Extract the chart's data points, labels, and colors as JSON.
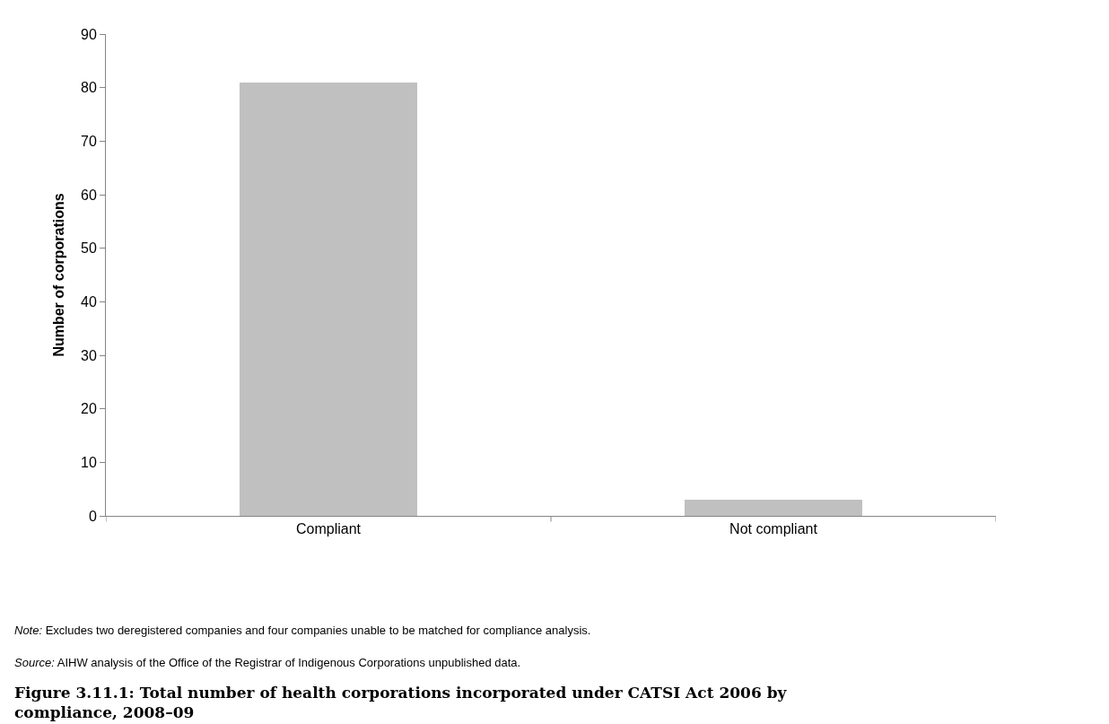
{
  "chart_data": {
    "type": "bar",
    "title": "Figure 3.11.1: Total number of health corporations incorporated under CATSI Act 2006 by compliance, 2008–09",
    "ylabel": "Number of corporations",
    "categories": [
      "Compliant",
      "Not compliant"
    ],
    "values": [
      81,
      3
    ],
    "color": "#c0c0c0",
    "ylim": [
      0,
      90
    ],
    "yticks": [
      0,
      10,
      20,
      30,
      40,
      50,
      60,
      70,
      80,
      90
    ],
    "legend": false,
    "annotations": [
      "Note: Excludes two deregistered companies and four companies unable to be matched for compliance analysis.",
      "Source: AIHW analysis of the Office of the Registrar of Indigenous Corporations unpublished data."
    ]
  }
}
